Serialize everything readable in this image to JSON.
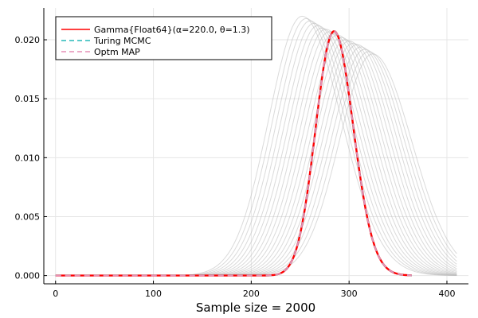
{
  "chart_data": {
    "type": "line",
    "title": "",
    "xlabel": "Sample size = 2000",
    "ylabel": "",
    "xlim": [
      -12,
      422
    ],
    "ylim": [
      -0.0007,
      0.0227
    ],
    "x_ticks": [
      0,
      100,
      200,
      300,
      400
    ],
    "x_tick_labels": [
      "0",
      "100",
      "200",
      "300",
      "400"
    ],
    "y_ticks": [
      0.0,
      0.005,
      0.01,
      0.015,
      0.02
    ],
    "y_tick_labels": [
      "0.000",
      "0.005",
      "0.010",
      "0.015",
      "0.020"
    ],
    "grid": true,
    "legend_position": "top-left",
    "background_curves": {
      "description_color": "#bbbbbb",
      "x_range": [
        0,
        410
      ],
      "curves": [
        {
          "peak_x": 252,
          "peak_y": 0.022
        },
        {
          "peak_x": 256,
          "peak_y": 0.0218
        },
        {
          "peak_x": 260,
          "peak_y": 0.0216
        },
        {
          "peak_x": 264,
          "peak_y": 0.0214
        },
        {
          "peak_x": 268,
          "peak_y": 0.0212
        },
        {
          "peak_x": 272,
          "peak_y": 0.021
        },
        {
          "peak_x": 276,
          "peak_y": 0.0209
        },
        {
          "peak_x": 280,
          "peak_y": 0.0207
        },
        {
          "peak_x": 284,
          "peak_y": 0.0205
        },
        {
          "peak_x": 288,
          "peak_y": 0.0204
        },
        {
          "peak_x": 292,
          "peak_y": 0.0202
        },
        {
          "peak_x": 296,
          "peak_y": 0.02
        },
        {
          "peak_x": 300,
          "peak_y": 0.0199
        },
        {
          "peak_x": 304,
          "peak_y": 0.0197
        },
        {
          "peak_x": 308,
          "peak_y": 0.0196
        },
        {
          "peak_x": 312,
          "peak_y": 0.0194
        },
        {
          "peak_x": 316,
          "peak_y": 0.0192
        },
        {
          "peak_x": 320,
          "peak_y": 0.019
        },
        {
          "peak_x": 324,
          "peak_y": 0.0188
        }
      ]
    },
    "series": [
      {
        "name": "Gamma{Float64}(α=220.0, θ=1.3)",
        "kind": "gamma",
        "alpha": 220.0,
        "theta": 1.3,
        "x_range": [
          0,
          364
        ],
        "color": "#ff0000",
        "dash": "solid"
      },
      {
        "name": "Turing MCMC",
        "kind": "gamma",
        "alpha": 220.0,
        "theta": 1.3,
        "x_range": [
          0,
          364
        ],
        "color": "#27b9b9",
        "dash": "dashed"
      },
      {
        "name": "Optm MAP",
        "kind": "gamma",
        "alpha": 220.0,
        "theta": 1.3,
        "x_range": [
          0,
          364
        ],
        "color": "#e58fb6",
        "dash": "dashed"
      }
    ]
  }
}
